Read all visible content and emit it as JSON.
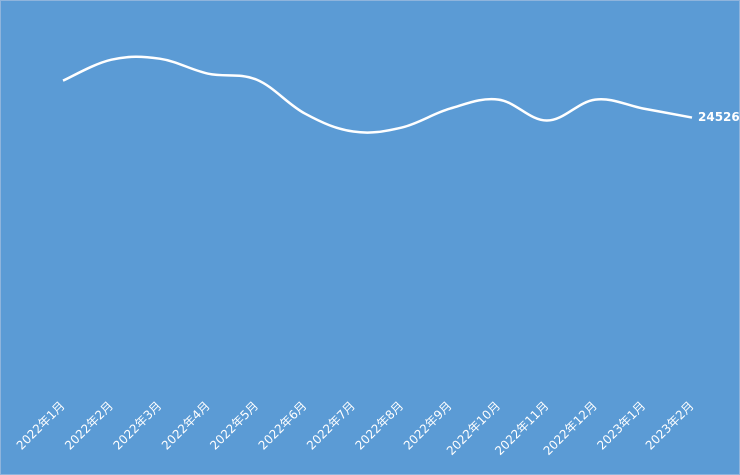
{
  "chart_data": {
    "type": "line",
    "categories": [
      "2022年1月",
      "2022年2月",
      "2022年3月",
      "2022年4月",
      "2022年5月",
      "2022年6月",
      "2022年7月",
      "2022年8月",
      "2022年9月",
      "2022年10月",
      "2022年11月",
      "2022年12月",
      "2023年1月",
      "2023年2月"
    ],
    "values": [
      27734,
      29554,
      29640,
      28340,
      27820,
      24874,
      23313,
      23660,
      25307,
      26087,
      24267,
      26087,
      25307,
      24526
    ],
    "color": "#ffffff",
    "ylim": [
      0,
      33000
    ]
  }
}
